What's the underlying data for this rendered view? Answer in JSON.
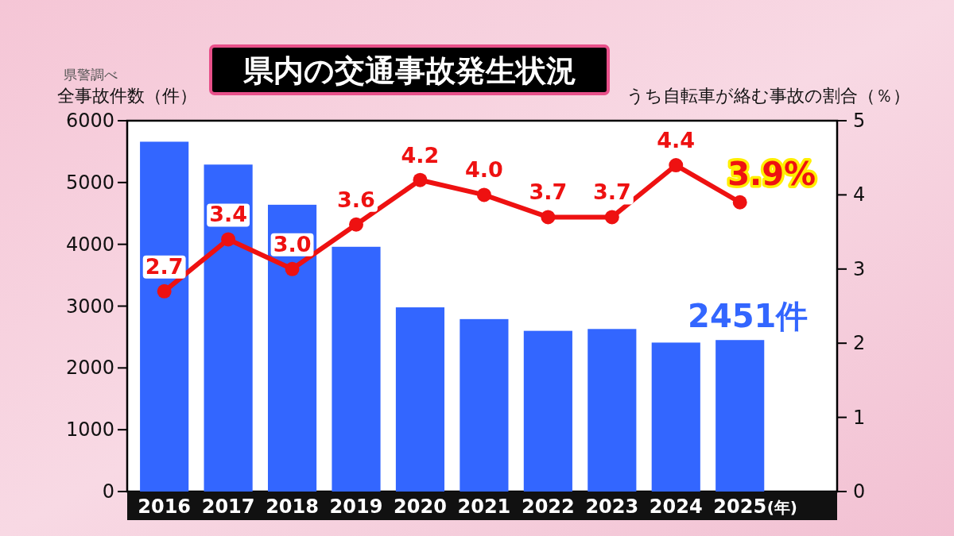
{
  "chart_data": {
    "type": "bar",
    "title": "県内の交通事故発生状況",
    "ylabel": "全事故件数（件）",
    "y2label": "うち自転車が絡む事故の割合（％）",
    "xlabel": "(年)",
    "annotations": [
      "県警調べ"
    ],
    "categories": [
      "2016",
      "2017",
      "2018",
      "2019",
      "2020",
      "2021",
      "2022",
      "2023",
      "2024",
      "2025"
    ],
    "series": [
      {
        "color": "#3366ff",
        "values": [
          5660,
          5290,
          4640,
          3960,
          2980,
          2790,
          2600,
          2630,
          2410,
          2451
        ],
        "value_labels": [
          null,
          null,
          null,
          null,
          null,
          null,
          null,
          null,
          null,
          "2451件"
        ]
      },
      {
        "type": "line",
        "axis": "y2",
        "marker": "circle",
        "color": "#ee1111",
        "values": [
          2.7,
          3.4,
          3.0,
          3.6,
          4.2,
          4.0,
          3.7,
          3.7,
          4.4,
          3.9
        ],
        "value_labels": [
          "2.7",
          "3.4",
          "3.0",
          "3.6",
          "4.2",
          "4.0",
          "3.7",
          "3.7",
          "4.4",
          "3.9%"
        ]
      }
    ],
    "ylim": [
      0,
      6000
    ],
    "yticks": [
      0,
      1000,
      2000,
      3000,
      4000,
      5000,
      6000
    ],
    "y2lim": [
      0,
      5
    ],
    "y2ticks": [
      0,
      1,
      2,
      3,
      4,
      5
    ]
  }
}
